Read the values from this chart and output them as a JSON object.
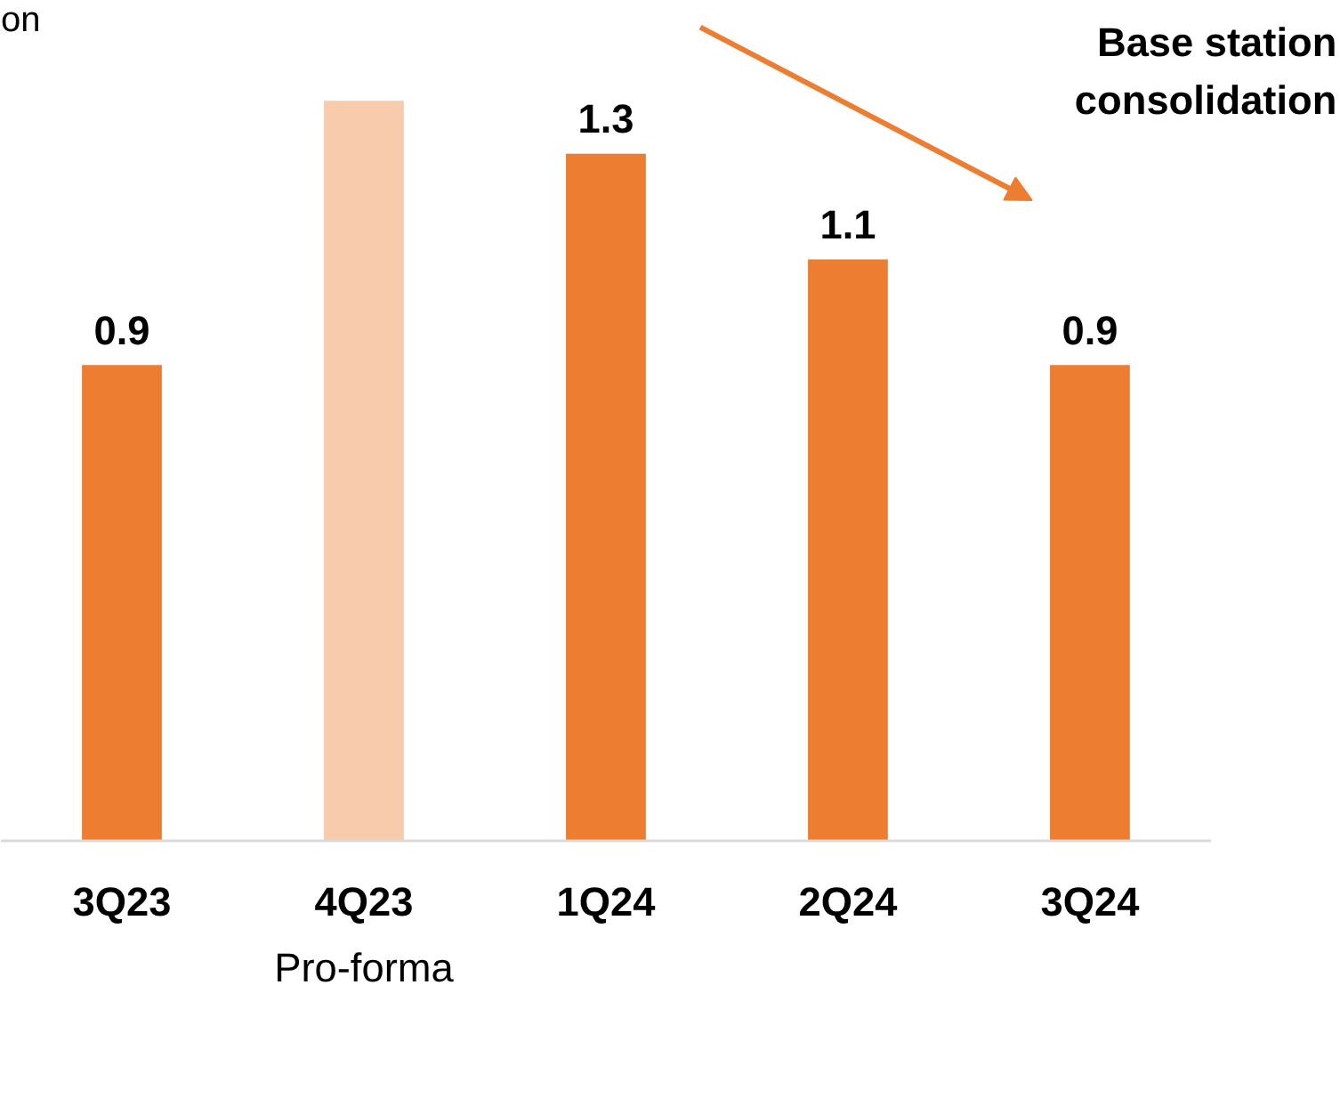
{
  "chart_data": {
    "type": "bar",
    "categories": [
      "3Q23",
      "4Q23",
      "1Q24",
      "2Q24",
      "3Q24"
    ],
    "values": [
      0.9,
      1.4,
      1.3,
      1.1,
      0.9
    ],
    "colors": [
      "#ed7d31",
      "#f8cbad",
      "#ed7d31",
      "#ed7d31",
      "#ed7d31"
    ],
    "value_labels": [
      "0.9",
      null,
      "1.3",
      "1.1",
      "0.9"
    ],
    "annotations": [
      "on",
      "Base station\nconsolidation",
      "Pro-forma"
    ],
    "grid": false
  }
}
